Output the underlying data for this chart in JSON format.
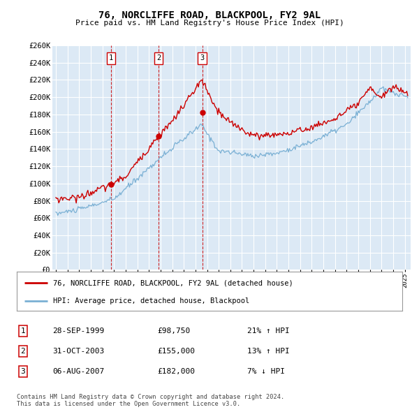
{
  "title": "76, NORCLIFFE ROAD, BLACKPOOL, FY2 9AL",
  "subtitle": "Price paid vs. HM Land Registry's House Price Index (HPI)",
  "ylim": [
    0,
    260000
  ],
  "yticks": [
    0,
    20000,
    40000,
    60000,
    80000,
    100000,
    120000,
    140000,
    160000,
    180000,
    200000,
    220000,
    240000,
    260000
  ],
  "ytick_labels": [
    "£0",
    "£20K",
    "£40K",
    "£60K",
    "£80K",
    "£100K",
    "£120K",
    "£140K",
    "£160K",
    "£180K",
    "£200K",
    "£220K",
    "£240K",
    "£260K"
  ],
  "xlim_start": 1994.7,
  "xlim_end": 2025.5,
  "background_color": "#ffffff",
  "plot_bg_color": "#dce9f5",
  "grid_color": "#ffffff",
  "transactions": [
    {
      "date": 1999.75,
      "price": 98750,
      "label": "1"
    },
    {
      "date": 2003.83,
      "price": 155000,
      "label": "2"
    },
    {
      "date": 2007.58,
      "price": 182000,
      "label": "3"
    }
  ],
  "legend_line1": "76, NORCLIFFE ROAD, BLACKPOOL, FY2 9AL (detached house)",
  "legend_line2": "HPI: Average price, detached house, Blackpool",
  "table_rows": [
    {
      "num": "1",
      "date": "28-SEP-1999",
      "price": "£98,750",
      "hpi": "21% ↑ HPI"
    },
    {
      "num": "2",
      "date": "31-OCT-2003",
      "price": "£155,000",
      "hpi": "13% ↑ HPI"
    },
    {
      "num": "3",
      "date": "06-AUG-2007",
      "price": "£182,000",
      "hpi": "7% ↓ HPI"
    }
  ],
  "footer": "Contains HM Land Registry data © Crown copyright and database right 2024.\nThis data is licensed under the Open Government Licence v3.0.",
  "red_color": "#cc0000",
  "blue_color": "#7ab0d4",
  "dashed_color": "#cc0000"
}
